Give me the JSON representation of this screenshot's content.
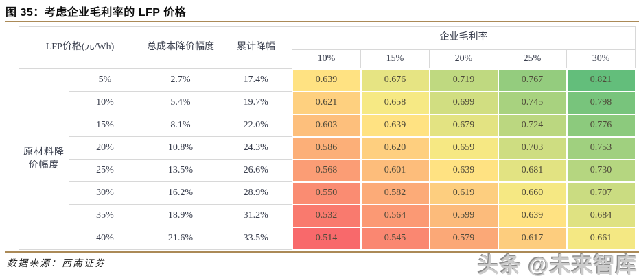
{
  "page": {
    "title": "图 35：考虑企业毛利率的 LFP 价格",
    "source": "数据来源：西南证券",
    "watermark": "头条 @未来智库",
    "accent_rule_color": "#ab8a57"
  },
  "table": {
    "corner_header": "LFP价格(元/Wh)",
    "total_cost_header": "总成本降价幅度",
    "cumulative_header": "累计降幅",
    "margin_group_header": "企业毛利率",
    "margin_columns": [
      "10%",
      "15%",
      "20%",
      "25%",
      "30%"
    ],
    "row_group_header": "原材料降价幅度",
    "rows": [
      {
        "raw_cut": "5%",
        "cost_cut": "2.7%",
        "cum_cut": "17.4%"
      },
      {
        "raw_cut": "10%",
        "cost_cut": "5.4%",
        "cum_cut": "19.7%"
      },
      {
        "raw_cut": "15%",
        "cost_cut": "8.1%",
        "cum_cut": "22.0%"
      },
      {
        "raw_cut": "20%",
        "cost_cut": "10.8%",
        "cum_cut": "24.3%"
      },
      {
        "raw_cut": "25%",
        "cost_cut": "13.5%",
        "cum_cut": "26.6%"
      },
      {
        "raw_cut": "30%",
        "cost_cut": "16.2%",
        "cum_cut": "28.9%"
      },
      {
        "raw_cut": "35%",
        "cost_cut": "18.9%",
        "cum_cut": "31.2%"
      },
      {
        "raw_cut": "40%",
        "cost_cut": "21.6%",
        "cum_cut": "33.5%"
      }
    ]
  },
  "chart_data": {
    "type": "heatmap",
    "title": "考虑企业毛利率的 LFP 价格",
    "unit": "元/Wh",
    "x_axis_label": "企业毛利率",
    "y_axis_label": "原材料降价幅度",
    "columns": [
      "10%",
      "15%",
      "20%",
      "25%",
      "30%"
    ],
    "row_labels": [
      "5%",
      "10%",
      "15%",
      "20%",
      "25%",
      "30%",
      "35%",
      "40%"
    ],
    "values": [
      [
        0.639,
        0.676,
        0.719,
        0.767,
        0.821
      ],
      [
        0.621,
        0.658,
        0.699,
        0.745,
        0.798
      ],
      [
        0.603,
        0.639,
        0.679,
        0.724,
        0.776
      ],
      [
        0.586,
        0.62,
        0.659,
        0.703,
        0.753
      ],
      [
        0.568,
        0.601,
        0.639,
        0.681,
        0.73
      ],
      [
        0.55,
        0.582,
        0.619,
        0.66,
        0.707
      ],
      [
        0.532,
        0.564,
        0.599,
        0.639,
        0.684
      ],
      [
        0.514,
        0.545,
        0.579,
        0.617,
        0.661
      ]
    ],
    "color_scale": {
      "type": "3-color",
      "min": {
        "value": 0.514,
        "color": "#F8696B"
      },
      "mid": {
        "value": 0.6485,
        "color": "#FFEB84"
      },
      "max": {
        "value": 0.821,
        "color": "#63BE7B"
      }
    }
  }
}
